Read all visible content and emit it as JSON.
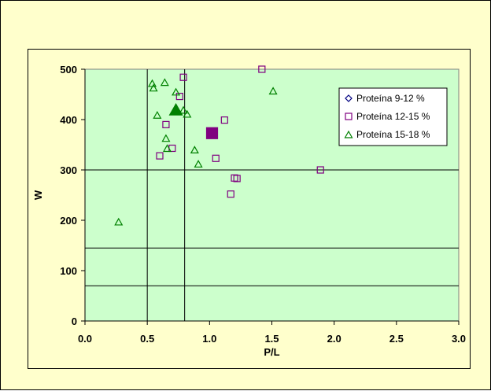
{
  "chart_data": {
    "type": "scatter",
    "xlabel": "P/L",
    "ylabel": "W",
    "xlim": [
      0,
      3.0
    ],
    "ylim": [
      0,
      500
    ],
    "x_ticks": [
      "0.0",
      "0.5",
      "1.0",
      "1.5",
      "2.0",
      "2.5",
      "3.0"
    ],
    "y_ticks": [
      "0",
      "100",
      "200",
      "300",
      "400",
      "500"
    ],
    "reference_lines": {
      "vertical": [
        0.5,
        0.8
      ],
      "horizontal": [
        300,
        145,
        70
      ]
    },
    "plot_background": "#ccffcc",
    "legend_position": "top-right",
    "series": [
      {
        "name": "Proteína 9-12 %",
        "marker": "diamond",
        "color": "#000080",
        "points": []
      },
      {
        "name": "Proteína 12-15 %",
        "marker": "square",
        "color": "#800080",
        "points": [
          [
            1.42,
            500
          ],
          [
            0.79,
            484
          ],
          [
            0.76,
            446
          ],
          [
            1.12,
            399
          ],
          [
            0.65,
            390
          ],
          [
            0.7,
            343
          ],
          [
            0.6,
            328
          ],
          [
            1.05,
            323
          ],
          [
            1.2,
            284
          ],
          [
            1.22,
            283
          ],
          [
            1.17,
            252
          ],
          [
            1.89,
            300
          ]
        ],
        "highlight": [
          [
            1.02,
            373
          ]
        ]
      },
      {
        "name": "Proteína 15-18 %",
        "marker": "triangle",
        "color": "#008000",
        "points": [
          [
            0.54,
            472
          ],
          [
            0.55,
            463
          ],
          [
            0.64,
            474
          ],
          [
            1.51,
            457
          ],
          [
            0.73,
            455
          ],
          [
            0.79,
            419
          ],
          [
            0.58,
            409
          ],
          [
            0.82,
            411
          ],
          [
            0.65,
            363
          ],
          [
            0.66,
            343
          ],
          [
            0.88,
            340
          ],
          [
            0.91,
            312
          ],
          [
            0.27,
            197
          ]
        ],
        "highlight": [
          [
            0.73,
            420
          ]
        ]
      }
    ]
  }
}
